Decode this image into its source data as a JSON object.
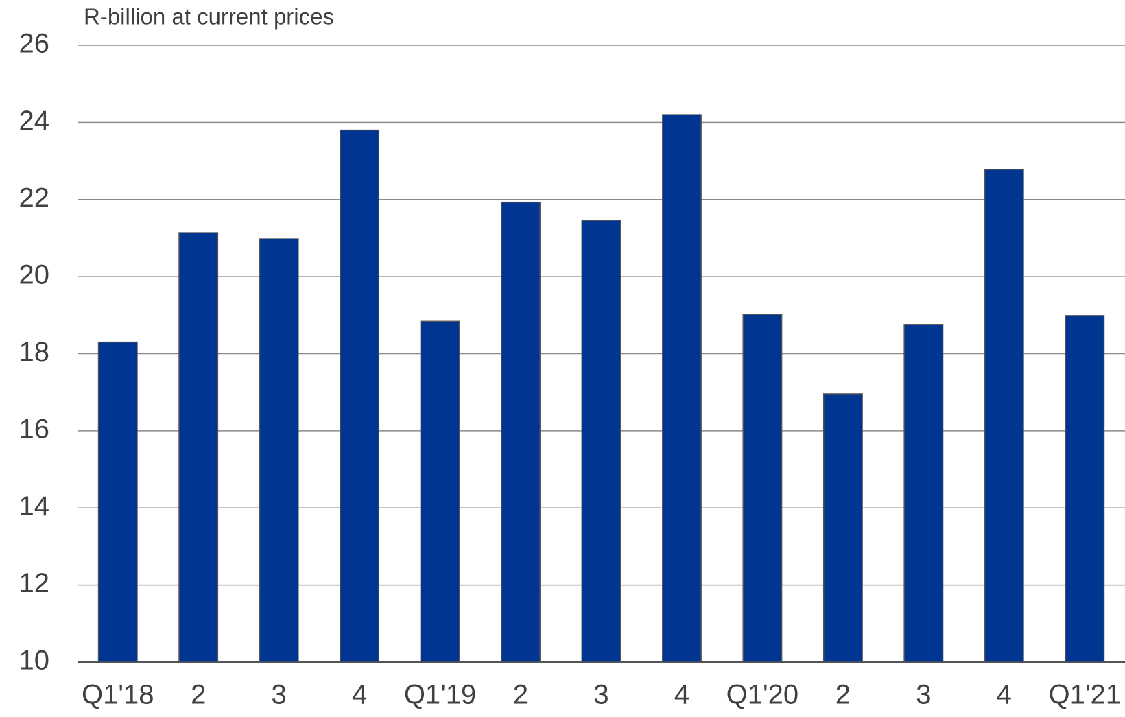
{
  "chart_data": {
    "type": "bar",
    "title": "R-billion at current prices",
    "categories": [
      "Q1'18",
      "2",
      "3",
      "4",
      "Q1'19",
      "2",
      "3",
      "4",
      "Q1'20",
      "2",
      "3",
      "4",
      "Q1'21"
    ],
    "values": [
      18.3,
      21.14,
      20.98,
      23.8,
      18.84,
      21.93,
      21.46,
      24.2,
      19.02,
      16.96,
      18.76,
      22.78,
      18.99
    ],
    "color": "#003591",
    "ylim": [
      10,
      26
    ],
    "yticks": [
      10,
      12,
      14,
      16,
      18,
      20,
      22,
      24,
      26
    ],
    "grid": true
  }
}
